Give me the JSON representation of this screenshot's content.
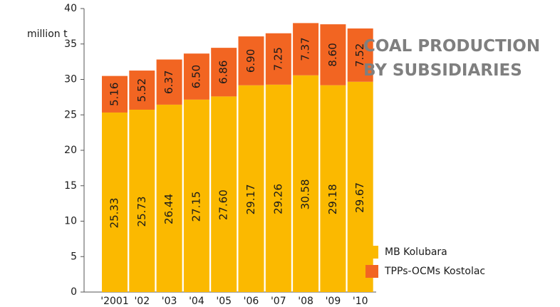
{
  "chart_data": {
    "type": "stacked_bar",
    "title": "COAL PRODUCTION BY SUBSIDIARIES",
    "y_label": "million t",
    "categories": [
      "'2001",
      "'02",
      "'03",
      "'04",
      "'05",
      "'06",
      "'07",
      "'08",
      "'09",
      "'10"
    ],
    "series": [
      {
        "name": "MB Kolubara",
        "color": "#fbb900",
        "values": [
          25.33,
          25.73,
          26.44,
          27.15,
          27.6,
          29.17,
          29.26,
          30.58,
          29.18,
          29.67
        ],
        "value_labels": [
          "25.33",
          "25.73",
          "26.44",
          "27.15",
          "27.60",
          "29.17",
          "29.26",
          "30.58",
          "29.18",
          "29.67"
        ]
      },
      {
        "name": "TPPs-OCMs Kostolac",
        "color": "#f26522",
        "values": [
          5.16,
          5.52,
          6.37,
          6.5,
          6.86,
          6.9,
          7.25,
          7.37,
          8.6,
          7.52
        ],
        "value_labels": [
          "5.16",
          "5.52",
          "6.37",
          "6.50",
          "6.86",
          "6.90",
          "7.25",
          "7.37",
          "8.60",
          "7.52"
        ]
      }
    ],
    "ylim": [
      0,
      40
    ],
    "yticks": [
      0,
      5,
      10,
      15,
      20,
      25,
      30,
      35,
      40
    ]
  }
}
